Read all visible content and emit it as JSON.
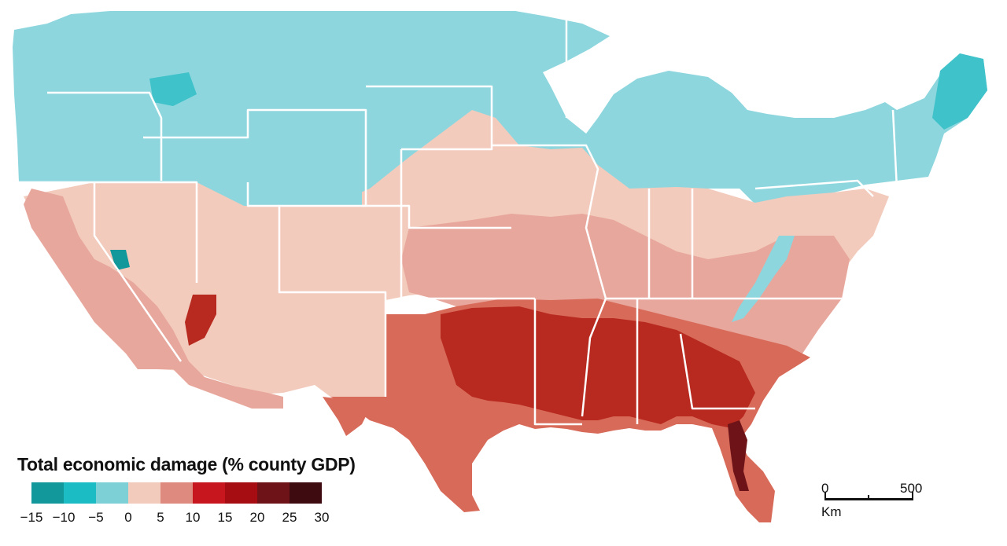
{
  "legend": {
    "title": "Total economic damage (% county GDP)",
    "ticks": [
      "−15",
      "−10",
      "−5",
      "0",
      "5",
      "10",
      "15",
      "20",
      "25",
      "30"
    ],
    "colors": [
      "#12989b",
      "#1bbcc3",
      "#7cd0d6",
      "#f2cbbd",
      "#de8a7f",
      "#c8161e",
      "#a50d12",
      "#6e1318",
      "#3d0b10"
    ]
  },
  "scale": {
    "start": "0",
    "end": "500",
    "unit": "Km"
  },
  "map_colors": {
    "cool_light": "#8dd6de",
    "cool_mid": "#3fc2c9",
    "cool_dark": "#12989b",
    "neutral": "#f2cbbd",
    "warm_light": "#e8a79c",
    "warm_mid": "#d86a5a",
    "warm_dark": "#b82a20",
    "warm_darkest": "#6e1318",
    "border": "#ffffff"
  }
}
